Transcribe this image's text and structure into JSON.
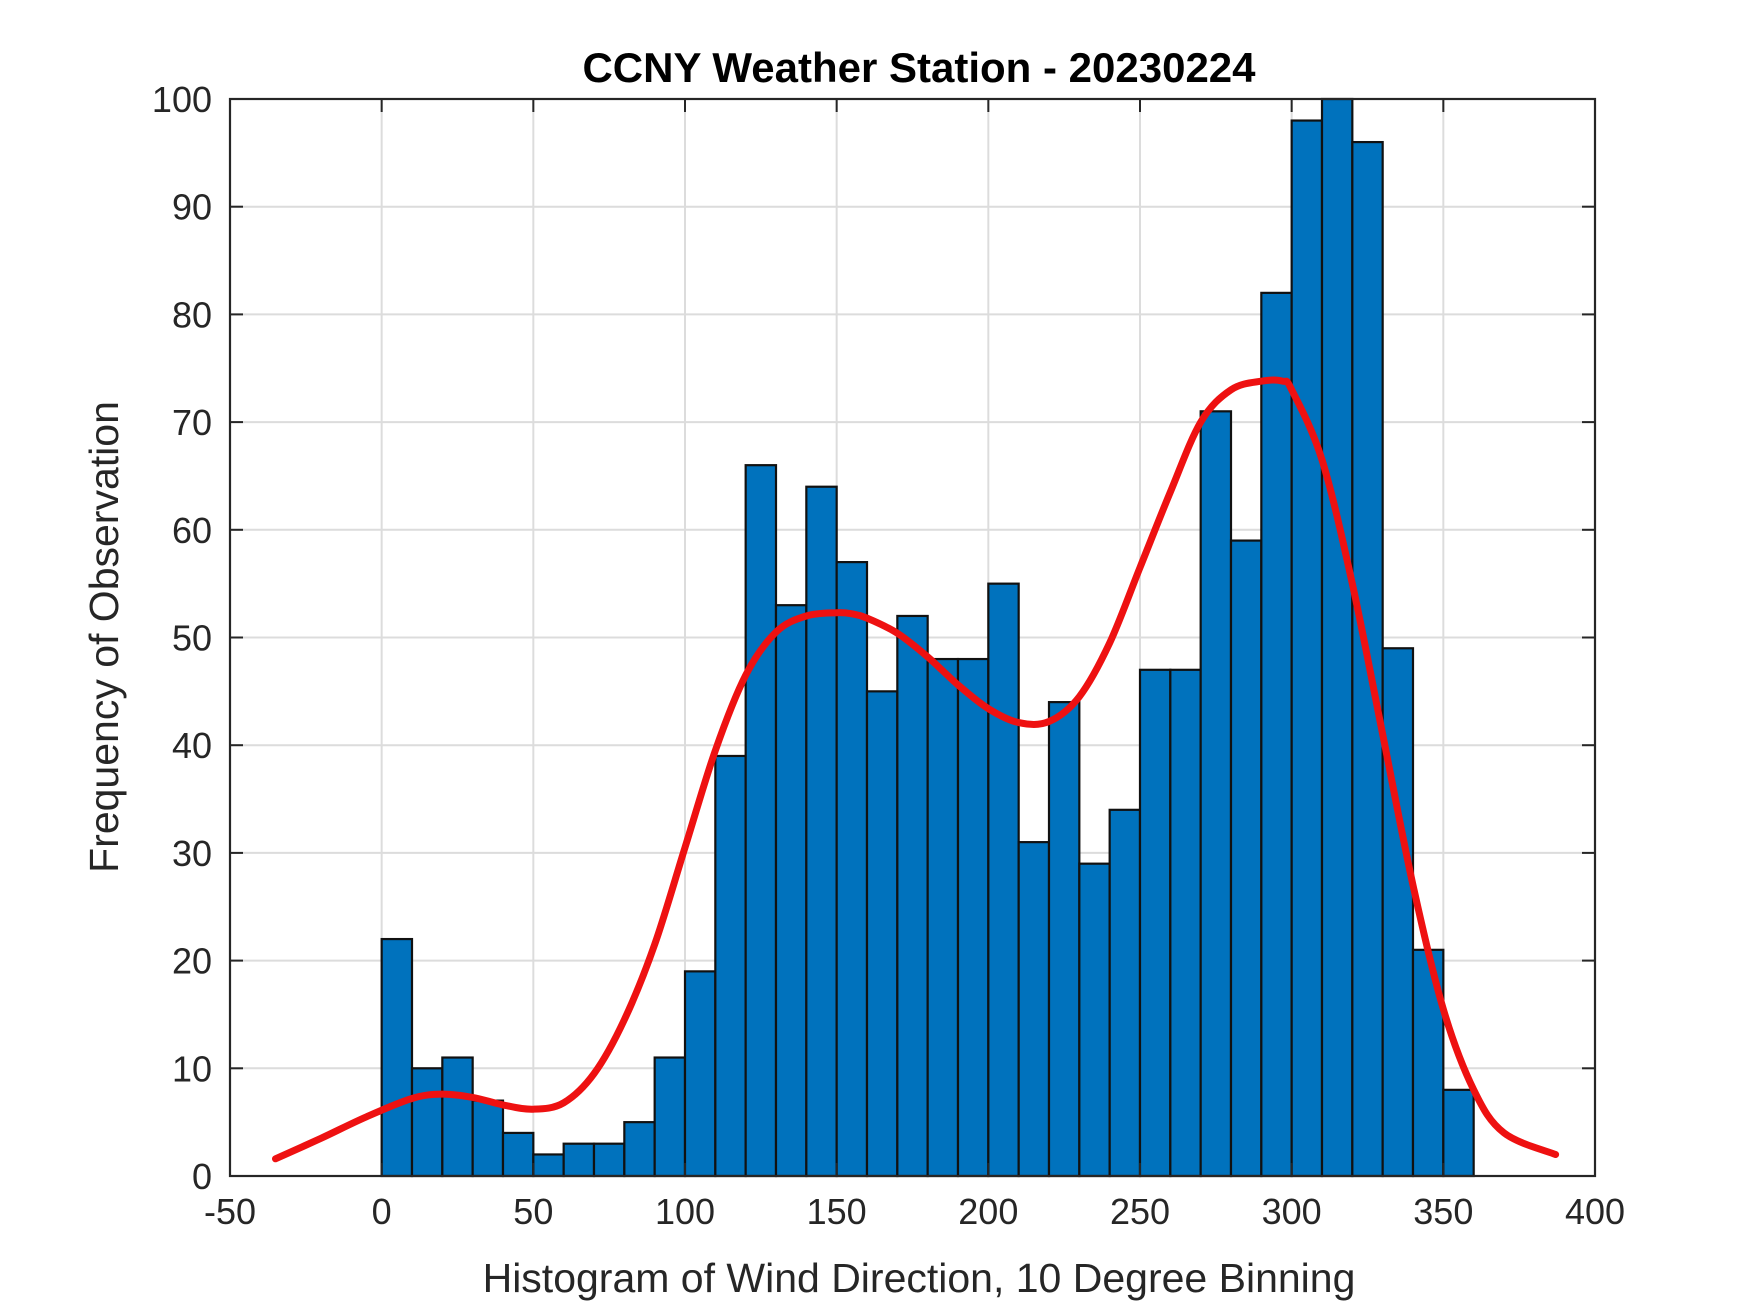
{
  "chart_data": {
    "type": "bar",
    "title": "CCNY Weather Station - 20230224",
    "xlabel": "Histogram of Wind Direction, 10 Degree Binning",
    "ylabel": "Frequency of Observation",
    "xlim": [
      -50,
      400
    ],
    "ylim": [
      0,
      100
    ],
    "xticks": [
      "-50",
      "0",
      "50",
      "100",
      "150",
      "200",
      "250",
      "300",
      "350",
      "400"
    ],
    "yticks": [
      "0",
      "10",
      "20",
      "30",
      "40",
      "50",
      "60",
      "70",
      "80",
      "90",
      "100"
    ],
    "grid": true,
    "bin_width": 10,
    "bin_edges_start": 0,
    "values": [
      22,
      10,
      11,
      7,
      4,
      2,
      3,
      3,
      5,
      11,
      19,
      39,
      66,
      53,
      64,
      57,
      45,
      52,
      48,
      48,
      55,
      31,
      44,
      29,
      34,
      47,
      47,
      71,
      59,
      82,
      98,
      100,
      96,
      49,
      21,
      8
    ],
    "fit_curve": {
      "name": "density fit",
      "x": [
        -35,
        -20,
        -5,
        10,
        20,
        30,
        40,
        50,
        60,
        70,
        80,
        90,
        100,
        110,
        120,
        130,
        140,
        150,
        155,
        160,
        170,
        180,
        190,
        200,
        210,
        220,
        230,
        240,
        250,
        260,
        270,
        280,
        290,
        297,
        300,
        310,
        320,
        330,
        340,
        350,
        360,
        370,
        387
      ],
      "y": [
        1.6,
        3.5,
        5.5,
        7.2,
        7.6,
        7.3,
        6.6,
        6.2,
        6.8,
        9.5,
        14.5,
        21.5,
        30.5,
        39.5,
        46.5,
        50.5,
        52.0,
        52.3,
        52.2,
        51.8,
        50.4,
        48.2,
        45.6,
        43.4,
        42.1,
        42.2,
        44.5,
        49.5,
        56.5,
        63.5,
        70.0,
        73.0,
        73.8,
        73.8,
        73.0,
        66.5,
        55.0,
        41.0,
        27.0,
        15.5,
        8.0,
        4.0,
        2.0
      ]
    },
    "colors": {
      "bar": "#0072bd",
      "fit": "#ee1111"
    }
  }
}
